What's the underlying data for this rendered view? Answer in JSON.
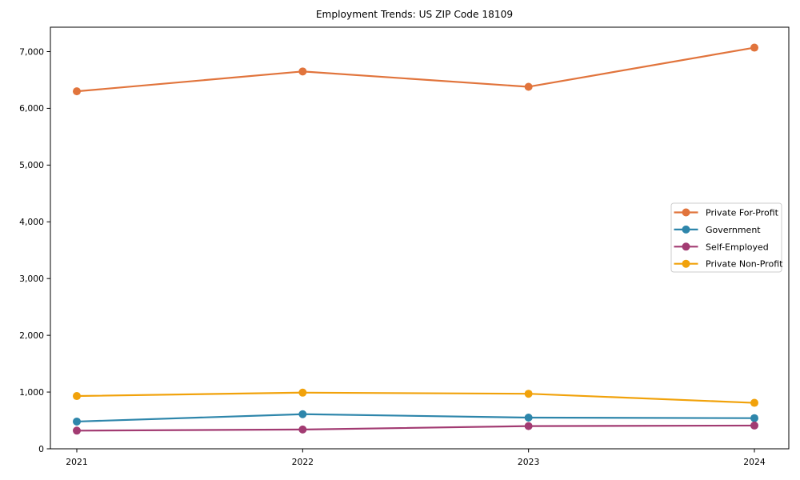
{
  "page": {
    "title": "Employment Trends: US ZIP Code 18109"
  },
  "chart_data": {
    "type": "line",
    "title": "Employment Trends: US ZIP Code 18109",
    "categories": [
      "2021",
      "2022",
      "2023",
      "2024"
    ],
    "series": [
      {
        "name": "Private For-Profit",
        "color": "#e1743c",
        "values": [
          6300,
          6650,
          6380,
          7070
        ]
      },
      {
        "name": "Government",
        "color": "#2e86ab",
        "values": [
          480,
          610,
          550,
          540
        ]
      },
      {
        "name": "Self-Employed",
        "color": "#a23b72",
        "values": [
          320,
          340,
          400,
          410
        ]
      },
      {
        "name": "Private Non-Profit",
        "color": "#f1a20b",
        "values": [
          930,
          990,
          970,
          810
        ]
      }
    ],
    "xlabel": "",
    "ylabel": "",
    "ylim": [
      0,
      7430
    ],
    "yticks": [
      0,
      1000,
      2000,
      3000,
      4000,
      5000,
      6000,
      7000
    ],
    "ytick_labels": [
      "0",
      "1,000",
      "2,000",
      "3,000",
      "4,000",
      "5,000",
      "6,000",
      "7,000"
    ],
    "grid": false,
    "legend_position": "right-center",
    "marker": "circle",
    "frame_color": "#000000",
    "legend_border_color": "#cccccc",
    "background_color": "#ffffff"
  }
}
